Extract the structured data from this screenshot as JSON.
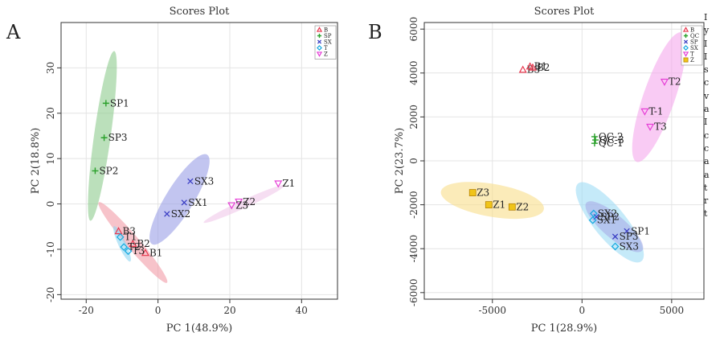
{
  "chart_data": [
    {
      "type": "scatter",
      "panel_label": "A",
      "title": "Scores Plot",
      "xlabel": "PC 1(48.9%)",
      "ylabel": "PC 2(18.8%)",
      "xlim": [
        -27,
        50
      ],
      "ylim": [
        -21,
        40
      ],
      "xticks": [
        -20,
        0,
        20,
        40
      ],
      "yticks": [
        -20,
        -10,
        0,
        10,
        20,
        30
      ],
      "grid": true,
      "legend_position": "top-right",
      "legend": [
        {
          "name": "B",
          "marker": "triangle-up",
          "color": "#e8384f"
        },
        {
          "name": "SP",
          "marker": "plus",
          "color": "#2aa02b"
        },
        {
          "name": "SX",
          "marker": "x",
          "color": "#3b3fc4"
        },
        {
          "name": "T",
          "marker": "diamond",
          "color": "#16a9e0"
        },
        {
          "name": "Z",
          "marker": "triangle-down",
          "color": "#e63fd6"
        }
      ],
      "series": [
        {
          "name": "B",
          "points": [
            {
              "label": "B1",
              "x": -3.5,
              "y": -10.8
            },
            {
              "label": "B2",
              "x": -7.0,
              "y": -8.8
            },
            {
              "label": "B3",
              "x": -11.0,
              "y": -6.0
            }
          ]
        },
        {
          "name": "SP",
          "points": [
            {
              "label": "SP1",
              "x": -14.5,
              "y": 22.2
            },
            {
              "label": "SP2",
              "x": -17.5,
              "y": 7.3
            },
            {
              "label": "SP3",
              "x": -15.0,
              "y": 14.6
            }
          ]
        },
        {
          "name": "SX",
          "points": [
            {
              "label": "SX1",
              "x": 7.3,
              "y": 0.3
            },
            {
              "label": "SX2",
              "x": 2.5,
              "y": -2.2
            },
            {
              "label": "SX3",
              "x": 9.0,
              "y": 5.0
            }
          ]
        },
        {
          "name": "T",
          "points": [
            {
              "label": "T1",
              "x": -10.5,
              "y": -7.3
            },
            {
              "label": "T2",
              "x": -9.5,
              "y": -9.5
            },
            {
              "label": "T3",
              "x": -8.3,
              "y": -10.4
            }
          ]
        },
        {
          "name": "Z",
          "points": [
            {
              "label": "Z1",
              "x": 33.5,
              "y": 4.5
            },
            {
              "label": "Z2",
              "x": 22.5,
              "y": 0.5
            },
            {
              "label": "Z3",
              "x": 20.5,
              "y": -0.3
            }
          ]
        }
      ],
      "ellipses": [
        {
          "group": "SP",
          "cx": -15.5,
          "cy": 15.0,
          "rx": 19.0,
          "ry": 2.3,
          "angle_deg": 80,
          "color": "#8ecb8e"
        },
        {
          "group": "SX",
          "cx": 6.0,
          "cy": 1.0,
          "rx": 12.5,
          "ry": 3.5,
          "angle_deg": 52,
          "color": "#9a9ee6"
        },
        {
          "group": "B",
          "cx": -7.0,
          "cy": -8.5,
          "rx": 13.0,
          "ry": 1.6,
          "angle_deg": -43,
          "color": "#f29ba6"
        },
        {
          "group": "T",
          "cx": -10.0,
          "cy": -8.8,
          "rx": 4.5,
          "ry": 1.0,
          "angle_deg": -60,
          "color": "#8fd6f2"
        },
        {
          "group": "Z",
          "cx": 24.0,
          "cy": 0.0,
          "rx": 12.0,
          "ry": 0.9,
          "angle_deg": 20,
          "color": "#f0c8ea"
        }
      ]
    },
    {
      "type": "scatter",
      "panel_label": "B",
      "title": "Scores Plot",
      "xlabel": "PC 1(28.9%)",
      "ylabel": "PC 2(23.7%)",
      "xlim": [
        -8800,
        6800
      ],
      "ylim": [
        -6300,
        6300
      ],
      "xticks": [
        -5000,
        0,
        5000
      ],
      "yticks": [
        -6000,
        -4000,
        -2000,
        0,
        2000,
        4000,
        6000
      ],
      "grid": true,
      "legend_position": "top-right",
      "legend": [
        {
          "name": "B",
          "marker": "triangle-up",
          "color": "#e8384f"
        },
        {
          "name": "QC",
          "marker": "plus",
          "color": "#2aa02b"
        },
        {
          "name": "SP",
          "marker": "x",
          "color": "#3b3fc4"
        },
        {
          "name": "SX",
          "marker": "diamond",
          "color": "#16a9e0"
        },
        {
          "name": "T",
          "marker": "triangle-down",
          "color": "#e63fd6"
        },
        {
          "name": "Z",
          "marker": "square",
          "color": "#f0c419"
        }
      ],
      "series": [
        {
          "name": "B",
          "points": [
            {
              "label": "B3",
              "x": -3300,
              "y": 4150
            },
            {
              "label": "B1",
              "x": -2900,
              "y": 4300
            },
            {
              "label": "B2",
              "x": -2750,
              "y": 4250
            }
          ]
        },
        {
          "name": "QC",
          "points": [
            {
              "label": "QC-2",
              "x": 700,
              "y": 1100
            },
            {
              "label": "QC-3",
              "x": 750,
              "y": 950
            },
            {
              "label": "QC-1",
              "x": 700,
              "y": 800
            }
          ]
        },
        {
          "name": "SP",
          "points": [
            {
              "label": "SP1",
              "x": 2500,
              "y": -3200
            },
            {
              "label": "SP2",
              "x": 800,
              "y": -2550
            },
            {
              "label": "SP3",
              "x": 1850,
              "y": -3450
            }
          ]
        },
        {
          "name": "SX",
          "points": [
            {
              "label": "SX2",
              "x": 650,
              "y": -2400
            },
            {
              "label": "SX1",
              "x": 600,
              "y": -2700
            },
            {
              "label": "SX3",
              "x": 1850,
              "y": -3900
            }
          ]
        },
        {
          "name": "T",
          "points": [
            {
              "label": "T2",
              "x": 4600,
              "y": 3600
            },
            {
              "label": "T-1",
              "x": 3500,
              "y": 2250
            },
            {
              "label": "T3",
              "x": 3800,
              "y": 1550
            }
          ]
        },
        {
          "name": "Z",
          "points": [
            {
              "label": "Z3",
              "x": -6100,
              "y": -1450
            },
            {
              "label": "Z1",
              "x": -5200,
              "y": -2000
            },
            {
              "label": "Z2",
              "x": -3900,
              "y": -2100
            }
          ]
        }
      ],
      "ellipses": [
        {
          "group": "Z",
          "cx": -5000,
          "cy": -1800,
          "rx": 2900,
          "ry": 750,
          "angle_deg": -8,
          "color": "#f9dd8a"
        },
        {
          "group": "T",
          "cx": 4300,
          "cy": 2900,
          "rx": 3200,
          "ry": 850,
          "angle_deg": 67,
          "color": "#f5a8ec"
        },
        {
          "group": "SX",
          "cx": 1550,
          "cy": -2800,
          "rx": 2500,
          "ry": 800,
          "angle_deg": -45,
          "color": "#9fdcf5"
        },
        {
          "group": "SP",
          "cx": 1800,
          "cy": -3000,
          "rx": 1900,
          "ry": 550,
          "angle_deg": -35,
          "color": "#a9abe6"
        }
      ]
    }
  ],
  "side_text": {
    "lines": [
      "I",
      "y",
      "I",
      "I",
      "s",
      "c",
      "v",
      "a",
      "I",
      "c",
      "c",
      "a",
      "a",
      "t",
      "r",
      "t"
    ]
  }
}
